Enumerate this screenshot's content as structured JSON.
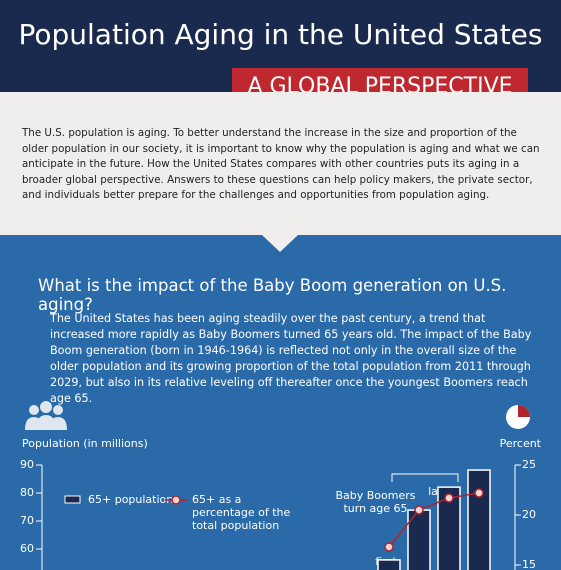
{
  "header": {
    "title": "Population Aging in the United States",
    "subtitle": "A GLOBAL PERSPECTIVE"
  },
  "intro": "The U.S. population is aging. To better understand the increase in the size and proportion of the older population in our society, it is important to know why the population is aging and what we can anticipate in the future. How the United States compares with other countries puts its aging in a broader global perspective. Answers to these questions can help policy makers, the private sector, and individuals better prepare for the challenges and opportunities from population aging.",
  "section": {
    "heading": "What is the impact of the Baby Boom generation on U.S. aging?",
    "body": "The United States has been aging steadily over the past century, a trend that increased more rapidly as Baby Boomers turned 65 years old. The impact of the Baby Boom generation (born in 1946-1964) is reflected not only in the overall size of the older population and its growing proportion of the total population from 2011 through 2029, but also in its relative leveling off thereafter once the youngest Boomers reach age 65."
  },
  "chart_data": {
    "type": "bar",
    "ylabel": "Population (in millions)",
    "y2label": "Percent",
    "categories": [
      null,
      null,
      null,
      null
    ],
    "series": [
      {
        "name": "65+ population",
        "color": "#1a2a4f",
        "values": [
          56.1,
          73.9,
          82.1,
          88.2
        ]
      },
      {
        "name": "65+ as a percentage of the total population",
        "color": "#b0232d",
        "axis": "y2",
        "values": [
          16.8,
          20.5,
          21.7,
          22.2
        ]
      }
    ],
    "ylim": [
      50,
      90
    ],
    "yticks": [
      60,
      70,
      80,
      90
    ],
    "y2lim": [
      15,
      25
    ],
    "y2ticks": [
      15,
      20,
      25
    ],
    "annotations": {
      "bracket": "Baby Boomers turn age 65",
      "first": "first",
      "last": "last"
    }
  }
}
